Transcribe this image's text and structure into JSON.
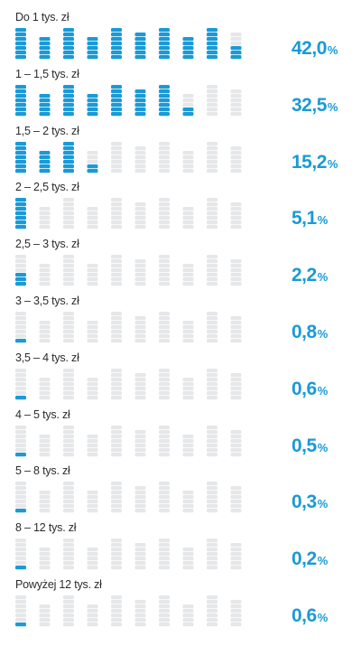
{
  "chart_data": {
    "type": "bar",
    "title": "",
    "xlabel": "",
    "ylabel": "",
    "categories": [
      "Do 1 tys. zł",
      "1 – 1,5 tys. zł",
      "1,5 – 2 tys. zł",
      "2 – 2,5 tys. zł",
      "2,5 – 3 tys. zł",
      "3 – 3,5 tys. zł",
      "3,5 – 4 tys. zł",
      "4 – 5 tys. zł",
      "5 – 8 tys. zł",
      "8 – 12 tys. zł",
      "Powyżej 12 tys. zł"
    ],
    "values": [
      42.0,
      32.5,
      15.2,
      5.1,
      2.2,
      0.8,
      0.6,
      0.5,
      0.3,
      0.2,
      0.6
    ],
    "value_labels": [
      "42,0",
      "32,5",
      "15,2",
      "5,1",
      "2,2",
      "0,8",
      "0,6",
      "0,5",
      "0,3",
      "0,2",
      "0,6"
    ],
    "unit": "%",
    "ylim": [
      0,
      50
    ],
    "pictogram": {
      "icon": "coin-stack-icon",
      "stacks_per_row": 10,
      "stack_value": 5
    },
    "colors": {
      "filled": "#1a9ad6",
      "empty": "#e6e7e9",
      "label": "#2b2b2b",
      "value": "#1a9ad6"
    }
  }
}
